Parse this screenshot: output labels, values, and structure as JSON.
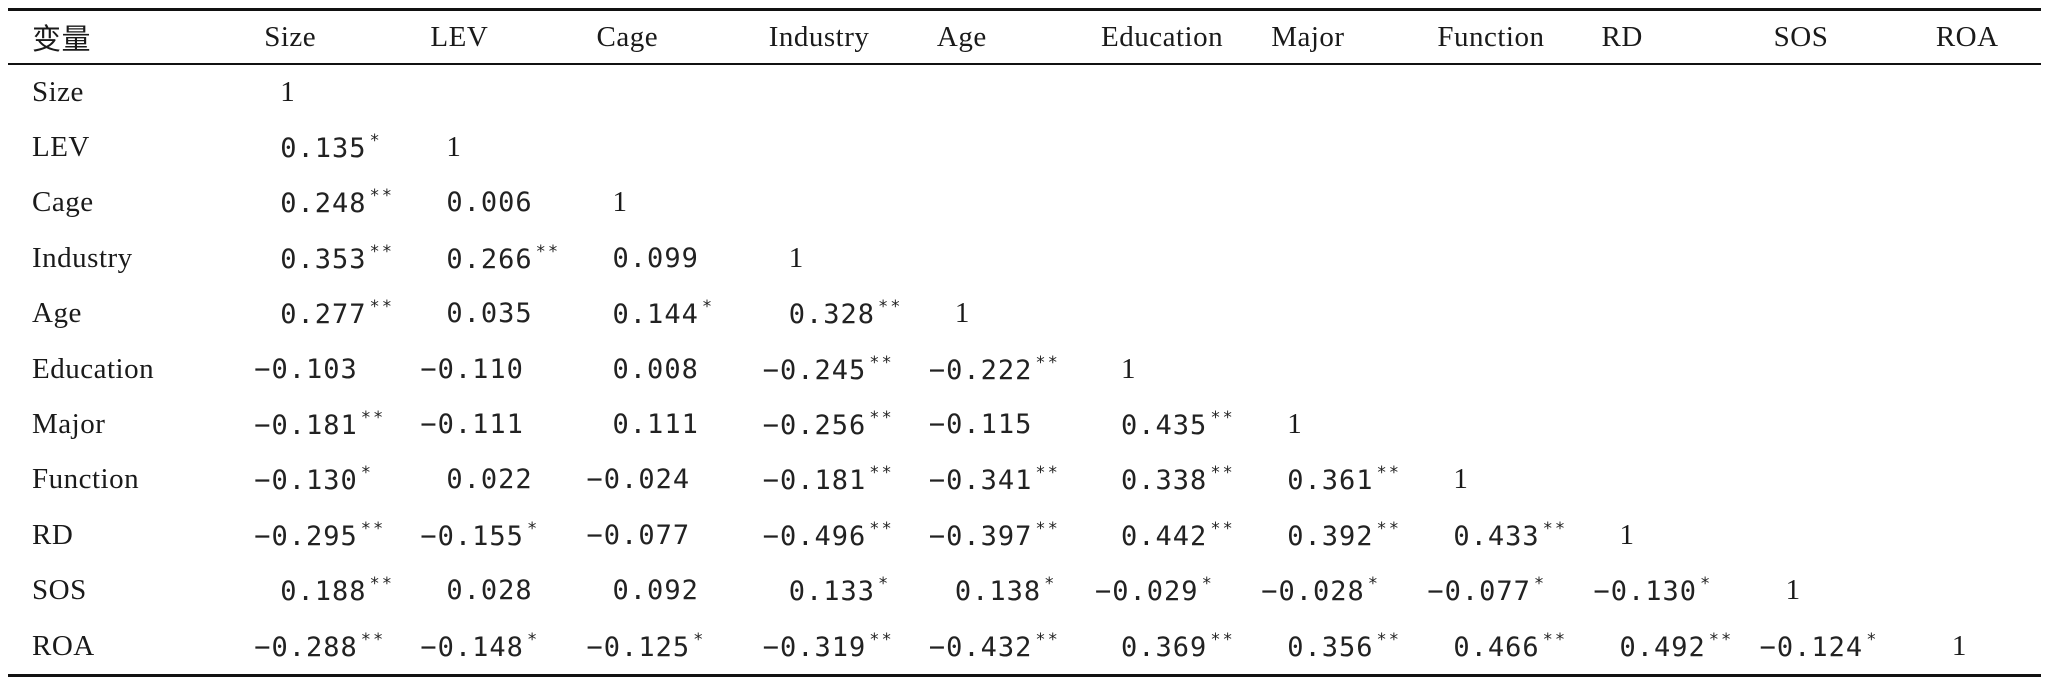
{
  "table": {
    "corner_label": "变量",
    "columns": [
      "Size",
      "LEV",
      "Cage",
      "Industry",
      "Age",
      "Education",
      "Major",
      "Function",
      "RD",
      "SOS",
      "ROA"
    ],
    "rows": [
      {
        "label": "Size",
        "cells": [
          {
            "v": "1",
            "s": ""
          }
        ]
      },
      {
        "label": "LEV",
        "cells": [
          {
            "v": "0.135",
            "s": "*"
          },
          {
            "v": "1",
            "s": ""
          }
        ]
      },
      {
        "label": "Cage",
        "cells": [
          {
            "v": "0.248",
            "s": "**"
          },
          {
            "v": "0.006",
            "s": ""
          },
          {
            "v": "1",
            "s": ""
          }
        ]
      },
      {
        "label": "Industry",
        "cells": [
          {
            "v": "0.353",
            "s": "**"
          },
          {
            "v": "0.266",
            "s": "**"
          },
          {
            "v": "0.099",
            "s": ""
          },
          {
            "v": "1",
            "s": ""
          }
        ]
      },
      {
        "label": "Age",
        "cells": [
          {
            "v": "0.277",
            "s": "**"
          },
          {
            "v": "0.035",
            "s": ""
          },
          {
            "v": "0.144",
            "s": "*"
          },
          {
            "v": "0.328",
            "s": "**"
          },
          {
            "v": "1",
            "s": ""
          }
        ]
      },
      {
        "label": "Education",
        "cells": [
          {
            "v": "−0.103",
            "s": ""
          },
          {
            "v": "−0.110",
            "s": ""
          },
          {
            "v": "0.008",
            "s": ""
          },
          {
            "v": "−0.245",
            "s": "**"
          },
          {
            "v": "−0.222",
            "s": "**"
          },
          {
            "v": "1",
            "s": ""
          }
        ]
      },
      {
        "label": "Major",
        "cells": [
          {
            "v": "−0.181",
            "s": "**"
          },
          {
            "v": "−0.111",
            "s": ""
          },
          {
            "v": "0.111",
            "s": ""
          },
          {
            "v": "−0.256",
            "s": "**"
          },
          {
            "v": "−0.115",
            "s": ""
          },
          {
            "v": "0.435",
            "s": "**"
          },
          {
            "v": "1",
            "s": ""
          }
        ]
      },
      {
        "label": "Function",
        "cells": [
          {
            "v": "−0.130",
            "s": "*"
          },
          {
            "v": "0.022",
            "s": ""
          },
          {
            "v": "−0.024",
            "s": ""
          },
          {
            "v": "−0.181",
            "s": "**"
          },
          {
            "v": "−0.341",
            "s": "**"
          },
          {
            "v": "0.338",
            "s": "**"
          },
          {
            "v": "0.361",
            "s": "**"
          },
          {
            "v": "1",
            "s": ""
          }
        ]
      },
      {
        "label": "RD",
        "cells": [
          {
            "v": "−0.295",
            "s": "**"
          },
          {
            "v": "−0.155",
            "s": "*"
          },
          {
            "v": "−0.077",
            "s": ""
          },
          {
            "v": "−0.496",
            "s": "**"
          },
          {
            "v": "−0.397",
            "s": "**"
          },
          {
            "v": "0.442",
            "s": "**"
          },
          {
            "v": "0.392",
            "s": "**"
          },
          {
            "v": "0.433",
            "s": "**"
          },
          {
            "v": "1",
            "s": ""
          }
        ]
      },
      {
        "label": "SOS",
        "cells": [
          {
            "v": "0.188",
            "s": "**"
          },
          {
            "v": "0.028",
            "s": ""
          },
          {
            "v": "0.092",
            "s": ""
          },
          {
            "v": "0.133",
            "s": "*"
          },
          {
            "v": "0.138",
            "s": "*"
          },
          {
            "v": "−0.029",
            "s": "*"
          },
          {
            "v": "−0.028",
            "s": "*"
          },
          {
            "v": "−0.077",
            "s": "*"
          },
          {
            "v": "−0.130",
            "s": "*"
          },
          {
            "v": "1",
            "s": ""
          }
        ]
      },
      {
        "label": "ROA",
        "cells": [
          {
            "v": "−0.288",
            "s": "**"
          },
          {
            "v": "−0.148",
            "s": "*"
          },
          {
            "v": "−0.125",
            "s": "*"
          },
          {
            "v": "−0.319",
            "s": "**"
          },
          {
            "v": "−0.432",
            "s": "**"
          },
          {
            "v": "0.369",
            "s": "**"
          },
          {
            "v": "0.356",
            "s": "**"
          },
          {
            "v": "0.466",
            "s": "**"
          },
          {
            "v": "0.492",
            "s": "**"
          },
          {
            "v": "−0.124",
            "s": "*"
          },
          {
            "v": "1",
            "s": ""
          }
        ]
      }
    ]
  }
}
